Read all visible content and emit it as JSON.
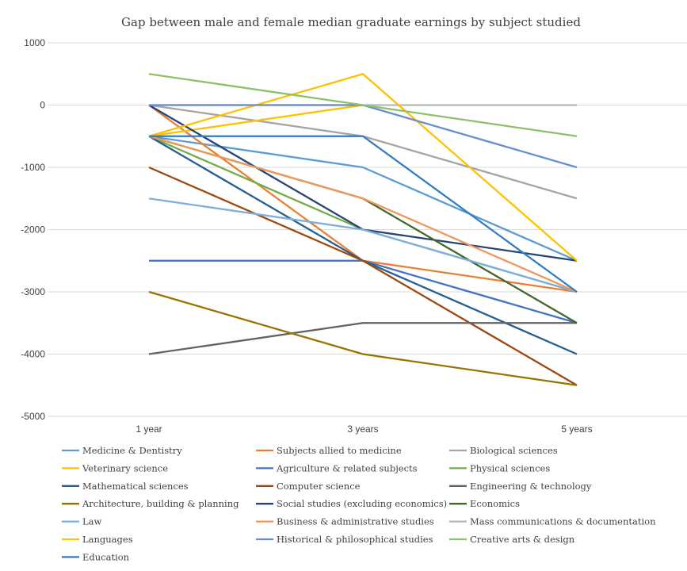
{
  "chart_data": {
    "type": "line",
    "title": "Gap between male and female median graduate earnings by subject studied",
    "categories": [
      "1 year",
      "3 years",
      "5 years"
    ],
    "ylim": [
      -5000,
      1000
    ],
    "yticks": [
      1000,
      0,
      -1000,
      -2000,
      -3000,
      -4000,
      -5000
    ],
    "grid": true,
    "legend": "bottom",
    "series": [
      {
        "name": "Medicine & Dentistry",
        "color": "#5B9BD5",
        "values": [
          -500,
          -1000,
          -2500
        ]
      },
      {
        "name": "Subjects allied to medicine",
        "color": "#ED7D31",
        "values": [
          0,
          -2500,
          -3000
        ]
      },
      {
        "name": "Biological sciences",
        "color": "#A5A5A5",
        "values": [
          0,
          -500,
          -1500
        ]
      },
      {
        "name": "Veterinary science",
        "color": "#FFC000",
        "values": [
          -500,
          0,
          null
        ]
      },
      {
        "name": "Agriculture & related subjects",
        "color": "#4472C4",
        "values": [
          -2500,
          -2500,
          -3500
        ]
      },
      {
        "name": "Physical sciences",
        "color": "#70AD47",
        "values": [
          -500,
          -2000,
          -3000
        ]
      },
      {
        "name": "Mathematical sciences",
        "color": "#255E91",
        "values": [
          -500,
          -2500,
          -4000
        ]
      },
      {
        "name": "Computer science",
        "color": "#9E480E",
        "values": [
          -1000,
          -2500,
          -4500
        ]
      },
      {
        "name": "Engineering & technology",
        "color": "#636363",
        "values": [
          -4000,
          -3500,
          -3500
        ]
      },
      {
        "name": "Architecture, building & planning",
        "color": "#997300",
        "values": [
          -3000,
          -4000,
          -4500
        ]
      },
      {
        "name": "Social studies (excluding economics)",
        "color": "#264478",
        "values": [
          0,
          -2000,
          -2500
        ]
      },
      {
        "name": "Economics",
        "color": "#43682B",
        "values": [
          -500,
          -1500,
          -3500
        ]
      },
      {
        "name": "Law",
        "color": "#7CAFDD",
        "values": [
          -1500,
          -2000,
          -3000
        ]
      },
      {
        "name": "Business & administrative studies",
        "color": "#F1975A",
        "values": [
          -500,
          -1500,
          -3000
        ]
      },
      {
        "name": "Mass communications & documentation",
        "color": "#B7B7B7",
        "values": [
          0,
          0,
          0
        ]
      },
      {
        "name": "Languages",
        "color": "#FFC000",
        "values": [
          -500,
          500,
          -2500
        ]
      },
      {
        "name": "Historical & philosophical studies",
        "color": "#698ED0",
        "values": [
          0,
          0,
          -1000
        ]
      },
      {
        "name": "Creative arts & design",
        "color": "#8CC168",
        "values": [
          500,
          0,
          -500
        ]
      },
      {
        "name": "Education",
        "color": "#327DC2",
        "values": [
          -500,
          -500,
          -3000
        ]
      }
    ]
  }
}
